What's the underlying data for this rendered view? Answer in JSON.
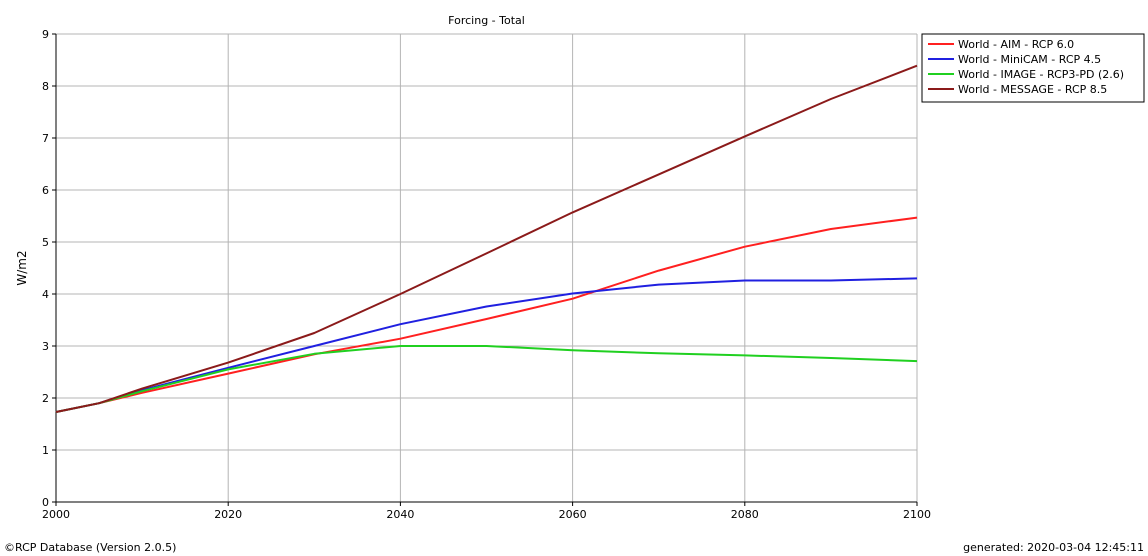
{
  "chart_data": {
    "type": "line",
    "title": "Forcing - Total",
    "xlabel": "",
    "ylabel": "W/m2",
    "xlim": [
      2000,
      2100
    ],
    "ylim": [
      0,
      9
    ],
    "x_ticks": [
      2000,
      2020,
      2040,
      2060,
      2080,
      2100
    ],
    "y_ticks": [
      0,
      1,
      2,
      3,
      4,
      5,
      6,
      7,
      8,
      9
    ],
    "grid": true,
    "legend_position": "top-right outside",
    "x": [
      2000,
      2005,
      2010,
      2020,
      2030,
      2040,
      2050,
      2060,
      2070,
      2080,
      2090,
      2100
    ],
    "series": [
      {
        "name": "World - AIM - RCP 6.0",
        "color": "#ff2020",
        "values": [
          1.73,
          1.9,
          2.1,
          2.47,
          2.84,
          3.14,
          3.52,
          3.91,
          4.45,
          4.91,
          5.25,
          5.47
        ]
      },
      {
        "name": "World - MiniCAM - RCP 4.5",
        "color": "#2020e0",
        "values": [
          1.73,
          1.9,
          2.15,
          2.58,
          3.0,
          3.42,
          3.76,
          4.01,
          4.18,
          4.26,
          4.26,
          4.3
        ]
      },
      {
        "name": "World - IMAGE - RCP3-PD (2.6)",
        "color": "#20d020",
        "values": [
          1.73,
          1.9,
          2.13,
          2.55,
          2.85,
          3.0,
          3.0,
          2.92,
          2.86,
          2.82,
          2.77,
          2.71
        ]
      },
      {
        "name": "World - MESSAGE - RCP 8.5",
        "color": "#8b1a1a",
        "values": [
          1.73,
          1.9,
          2.18,
          2.68,
          3.25,
          4.0,
          4.78,
          5.57,
          6.3,
          7.03,
          7.75,
          8.39
        ]
      }
    ]
  },
  "footer": {
    "left": "©RCP Database (Version 2.0.5)",
    "right": "generated: 2020-03-04 12:45:11"
  }
}
